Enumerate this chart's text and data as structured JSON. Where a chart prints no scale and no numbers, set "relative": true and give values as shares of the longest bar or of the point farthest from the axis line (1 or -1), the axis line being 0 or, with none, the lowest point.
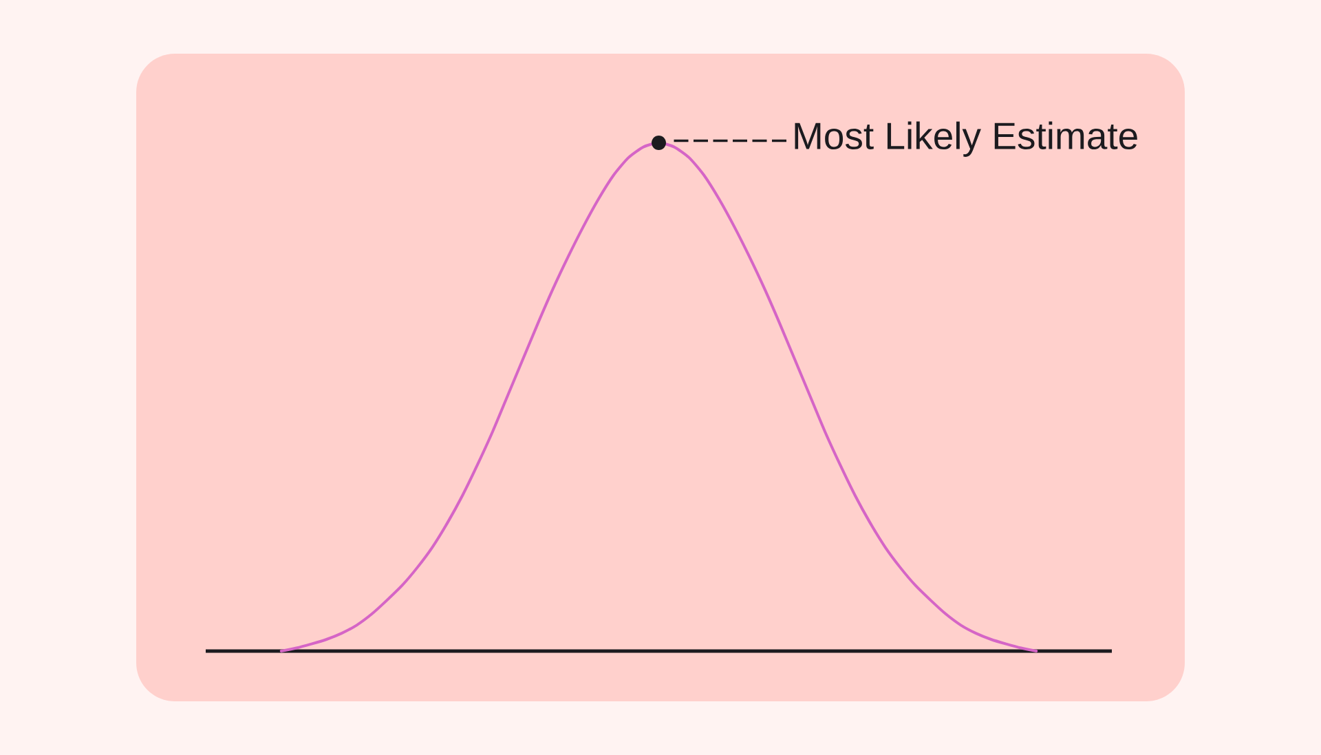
{
  "chart_data": {
    "type": "line",
    "relative": true,
    "categories": [
      null,
      null,
      null,
      null,
      null,
      null,
      null,
      null,
      null,
      null,
      null,
      null,
      null,
      null,
      null,
      null,
      null,
      null,
      null,
      null,
      null,
      null,
      null,
      null,
      null,
      null,
      null,
      null,
      null,
      null,
      null,
      null,
      null,
      null,
      null,
      null,
      null,
      null,
      null,
      null,
      null,
      null,
      null,
      null,
      null,
      null,
      null,
      null,
      null,
      null,
      null,
      null,
      null,
      null,
      null,
      null,
      null,
      null,
      null,
      null,
      null
    ],
    "values": [
      null,
      null,
      null,
      null,
      null,
      0.0,
      0.006,
      0.014,
      0.023,
      0.035,
      0.051,
      0.073,
      0.1,
      0.129,
      0.164,
      0.204,
      0.252,
      0.306,
      0.367,
      0.432,
      0.503,
      0.574,
      0.645,
      0.713,
      0.776,
      0.835,
      0.889,
      0.936,
      0.971,
      0.992,
      1.0,
      0.992,
      0.971,
      0.936,
      0.889,
      0.835,
      0.776,
      0.713,
      0.645,
      0.574,
      0.503,
      0.432,
      0.367,
      0.306,
      0.252,
      0.204,
      0.164,
      0.129,
      0.1,
      0.073,
      0.051,
      0.035,
      0.023,
      0.014,
      0.006,
      0.0,
      null,
      null,
      null,
      null,
      null
    ],
    "color": "#d565c6",
    "annotations": [
      "Most Likely Estimate"
    ]
  }
}
